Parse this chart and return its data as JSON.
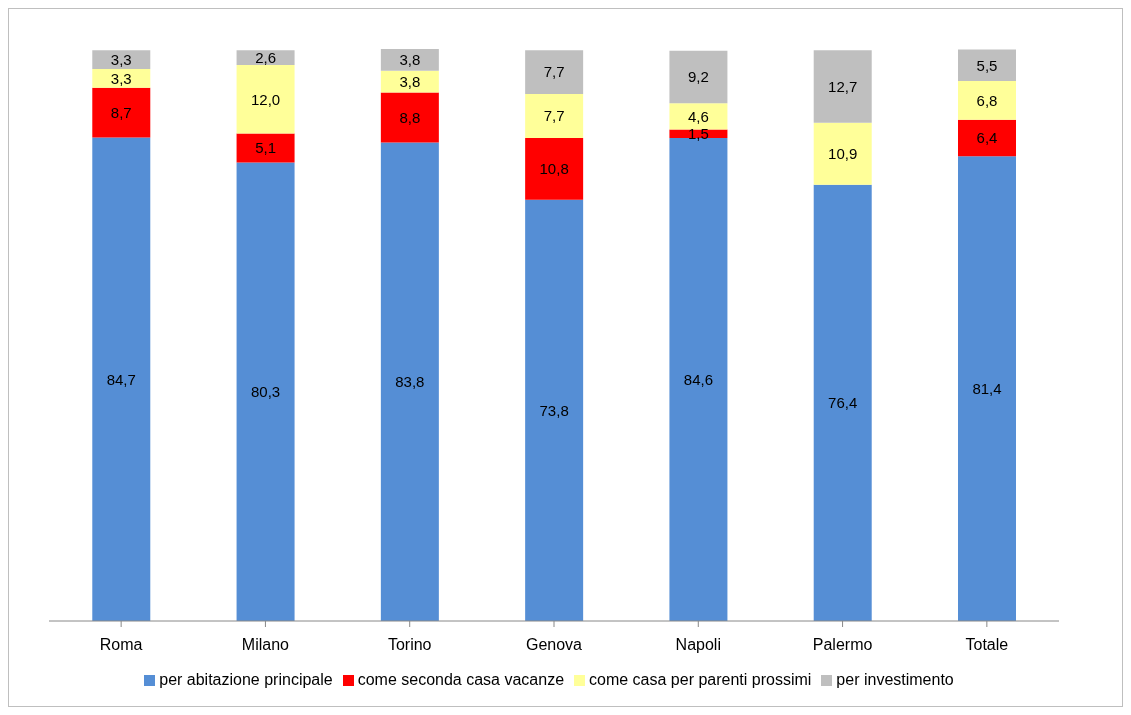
{
  "chart_data": {
    "type": "bar",
    "stacked": true,
    "categories": [
      "Roma",
      "Milano",
      "Torino",
      "Genova",
      "Napoli",
      "Palermo",
      "Totale"
    ],
    "series": [
      {
        "name": "per abitazione principale",
        "color": "#558ed5",
        "values": [
          84.7,
          80.3,
          83.8,
          73.8,
          84.6,
          76.4,
          81.4
        ],
        "value_labels": [
          "84,7",
          "80,3",
          "83,8",
          "73,8",
          "84,6",
          "76,4",
          "81,4"
        ]
      },
      {
        "name": "come seconda casa vacanze",
        "color": "#ff0000",
        "values": [
          8.7,
          5.1,
          8.8,
          10.8,
          1.5,
          null,
          6.4
        ],
        "value_labels": [
          "8,7",
          "5,1",
          "8,8",
          "10,8",
          "1,5",
          null,
          "6,4"
        ]
      },
      {
        "name": "come casa per parenti prossimi",
        "color": "#ffff99",
        "values": [
          3.3,
          12.0,
          3.8,
          7.7,
          4.6,
          10.9,
          6.8
        ],
        "value_labels": [
          "3,3",
          "12,0",
          "3,8",
          "7,7",
          "4,6",
          "10,9",
          "6,8"
        ]
      },
      {
        "name": "per investimento",
        "color": "#bfbfbf",
        "values": [
          3.3,
          2.6,
          3.8,
          7.7,
          9.2,
          12.7,
          5.5
        ],
        "value_labels": [
          "3,3",
          "2,6",
          "3,8",
          "7,7",
          "9,2",
          "12,7",
          "5,5"
        ]
      }
    ],
    "tick_labels": "x",
    "grid": false,
    "legend": "bottom"
  }
}
